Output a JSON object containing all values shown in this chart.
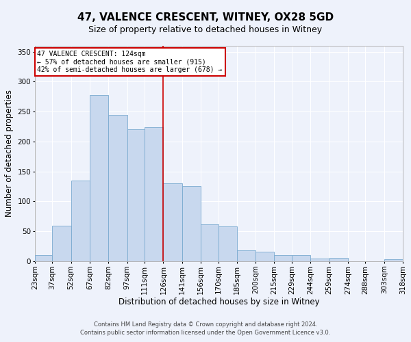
{
  "title": "47, VALENCE CRESCENT, WITNEY, OX28 5GD",
  "subtitle": "Size of property relative to detached houses in Witney",
  "xlabel": "Distribution of detached houses by size in Witney",
  "ylabel": "Number of detached properties",
  "footer_line1": "Contains HM Land Registry data © Crown copyright and database right 2024.",
  "footer_line2": "Contains public sector information licensed under the Open Government Licence v3.0.",
  "bin_labels": [
    "23sqm",
    "37sqm",
    "52sqm",
    "67sqm",
    "82sqm",
    "97sqm",
    "111sqm",
    "126sqm",
    "141sqm",
    "156sqm",
    "170sqm",
    "185sqm",
    "200sqm",
    "215sqm",
    "229sqm",
    "244sqm",
    "259sqm",
    "274sqm",
    "288sqm",
    "303sqm",
    "318sqm"
  ],
  "bar_values": [
    10,
    59,
    135,
    278,
    244,
    221,
    224,
    130,
    125,
    61,
    58,
    18,
    16,
    10,
    10,
    4,
    5,
    0,
    0,
    3
  ],
  "bin_edges": [
    23,
    37,
    52,
    67,
    82,
    97,
    111,
    126,
    141,
    156,
    170,
    185,
    200,
    215,
    229,
    244,
    259,
    274,
    288,
    303,
    318
  ],
  "bar_color": "#c8d8ee",
  "bar_edge_color": "#7aaad0",
  "vline_x": 126,
  "vline_color": "#cc0000",
  "annotation_title": "47 VALENCE CRESCENT: 124sqm",
  "annotation_line1": "← 57% of detached houses are smaller (915)",
  "annotation_line2": "42% of semi-detached houses are larger (678) →",
  "annotation_box_color": "#cc0000",
  "ylim": [
    0,
    360
  ],
  "yticks": [
    0,
    50,
    100,
    150,
    200,
    250,
    300,
    350
  ],
  "background_color": "#eef2fb",
  "plot_bg_color": "#eef2fb",
  "grid_color": "#ffffff",
  "title_fontsize": 11,
  "subtitle_fontsize": 9,
  "axis_label_fontsize": 8.5,
  "tick_fontsize": 7.5,
  "footer_fontsize": 6.0
}
